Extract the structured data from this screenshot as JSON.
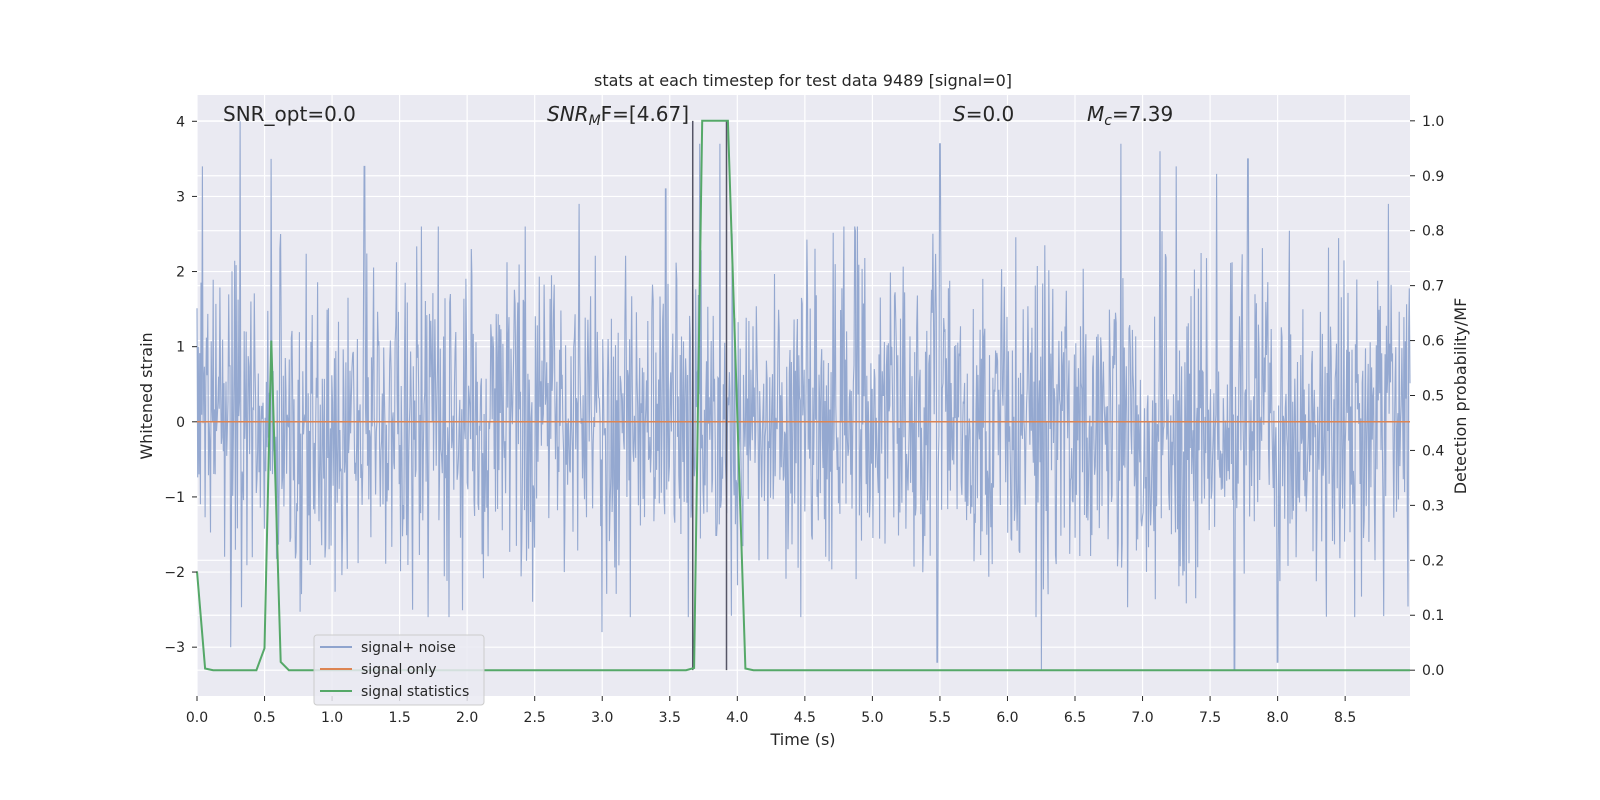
{
  "chart_data": {
    "type": "line",
    "title": "stats at each timestep for test data 9489 [signal=0]",
    "xlabel": "Time (s)",
    "ylabel": "Whitened strain",
    "y2label": "Detection probability/MF",
    "xlim": [
      0,
      8.98
    ],
    "ylim": [
      -3.65,
      4.35
    ],
    "y2lim": [
      -0.047,
      1.047
    ],
    "xticks": [
      "0.0",
      "0.5",
      "1.0",
      "1.5",
      "2.0",
      "2.5",
      "3.0",
      "3.5",
      "4.0",
      "4.5",
      "5.0",
      "5.5",
      "6.0",
      "6.5",
      "7.0",
      "7.5",
      "8.0",
      "8.5"
    ],
    "yticks": [
      "−3",
      "−2",
      "−1",
      "0",
      "1",
      "2",
      "3",
      "4"
    ],
    "y2ticks": [
      "0.0",
      "0.1",
      "0.2",
      "0.3",
      "0.4",
      "0.5",
      "0.6",
      "0.7",
      "0.8",
      "0.9",
      "1.0"
    ],
    "grid": true,
    "legend_position": "lower-left",
    "annotations": {
      "snr_opt": "SNR_opt=0.0",
      "snr_mf_main": "SNR",
      "snr_mf_sub": "M",
      "snr_mf_tail": "F=[4.67]",
      "s_italic": "S",
      "s_value": "=0.0",
      "mc_main": "M",
      "mc_sub": "c",
      "mc_value": "=7.39"
    },
    "vertical_markers": [
      3.67,
      3.92
    ],
    "series": [
      {
        "name": "signal+ noise",
        "color": "#8fa4ce",
        "style": "dense noise, roughly ±1.7 envelope with peaks up to 4.0",
        "noise_envelope": 1.75,
        "peak_values": [
          [
            0.04,
            3.4
          ],
          [
            0.32,
            4.0
          ],
          [
            0.55,
            3.5
          ],
          [
            0.62,
            2.5
          ],
          [
            1.24,
            3.4
          ],
          [
            2.83,
            2.9
          ],
          [
            3.47,
            3.1
          ],
          [
            3.72,
            3.7
          ],
          [
            3.87,
            3.7
          ],
          [
            5.5,
            3.7
          ],
          [
            6.84,
            3.7
          ],
          [
            7.13,
            3.6
          ],
          [
            7.25,
            3.4
          ],
          [
            7.55,
            3.3
          ],
          [
            7.78,
            3.5
          ],
          [
            8.82,
            2.9
          ],
          [
            0.25,
            -3.0
          ],
          [
            6.25,
            -3.3
          ],
          [
            7.68,
            -3.3
          ],
          [
            8.0,
            -3.2
          ],
          [
            3.0,
            -2.8
          ],
          [
            5.48,
            -3.2
          ]
        ]
      },
      {
        "name": "signal only",
        "color": "#dd8452",
        "x": [
          0.0,
          8.98
        ],
        "y": [
          0.0,
          0.0
        ]
      },
      {
        "name": "signal statistics",
        "color": "#55a868",
        "axis": "right",
        "x": [
          0.0,
          0.06,
          0.12,
          0.44,
          0.5,
          0.55,
          0.62,
          0.68,
          3.62,
          3.68,
          3.74,
          3.93,
          4.06,
          4.12,
          8.98
        ],
        "y": [
          0.18,
          0.003,
          0.0,
          0.0,
          0.04,
          0.6,
          0.015,
          0.0,
          0.0,
          0.004,
          1.0,
          1.0,
          0.003,
          0.0,
          0.0
        ]
      }
    ]
  }
}
